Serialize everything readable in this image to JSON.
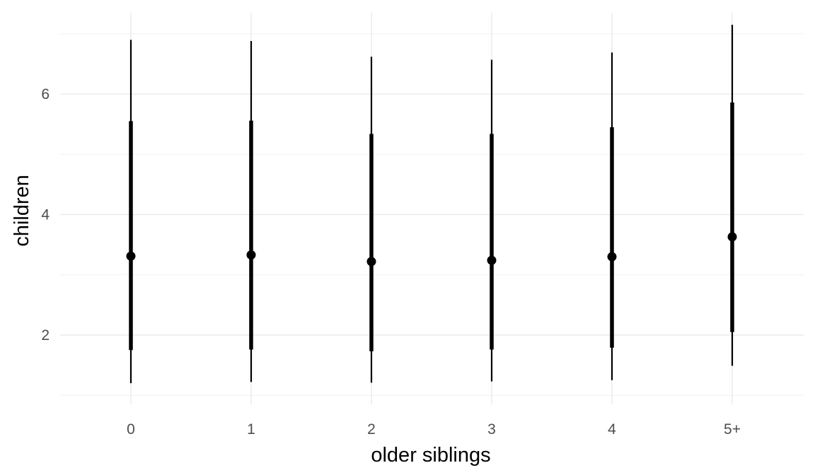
{
  "chart_data": {
    "type": "pointrange",
    "title": "",
    "xlabel": "older siblings",
    "ylabel": "children",
    "categories": [
      "0",
      "1",
      "2",
      "3",
      "4",
      "5+"
    ],
    "ylim": [
      0.85,
      7.35
    ],
    "yticks": [
      2,
      4,
      6
    ],
    "grid": true,
    "legend": "none",
    "colors": {
      "marks": "#000000",
      "grid": "#e6e6e6",
      "tick_text": "#4d4d4d"
    },
    "series": [
      {
        "median": [
          3.31,
          3.33,
          3.22,
          3.24,
          3.3,
          3.63
        ],
        "inner_low": [
          1.75,
          1.76,
          1.73,
          1.76,
          1.79,
          2.05
        ],
        "inner_high": [
          5.55,
          5.56,
          5.34,
          5.34,
          5.45,
          5.86
        ],
        "outer_low": [
          1.2,
          1.22,
          1.21,
          1.23,
          1.25,
          1.49
        ],
        "outer_high": [
          6.9,
          6.88,
          6.62,
          6.57,
          6.69,
          7.15
        ]
      }
    ]
  }
}
